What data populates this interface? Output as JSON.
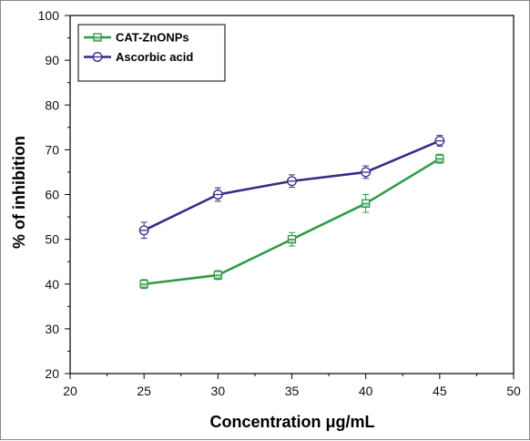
{
  "chart_data": {
    "type": "line",
    "xlabel": "Concentration μg/mL",
    "ylabel": "% of inhibition",
    "xlim": [
      20,
      50
    ],
    "ylim": [
      20,
      100
    ],
    "x_ticks": [
      20,
      25,
      30,
      35,
      40,
      45,
      50
    ],
    "y_ticks": [
      20,
      30,
      40,
      50,
      60,
      70,
      80,
      90,
      100
    ],
    "grid": false,
    "legend": "top-left",
    "x": [
      25,
      30,
      35,
      40,
      45
    ],
    "series": [
      {
        "name": "CAT-ZnONPs",
        "values": [
          40,
          42,
          50,
          58,
          68
        ],
        "errors": [
          1,
          1,
          1.5,
          2,
          1
        ],
        "color": "#2e9b45",
        "marker": "square"
      },
      {
        "name": "Ascorbic acid",
        "values": [
          52,
          60,
          63,
          65,
          72
        ],
        "errors": [
          1.8,
          1.5,
          1.4,
          1.4,
          1.2
        ],
        "color": "#3c2a86",
        "marker": "circle"
      }
    ]
  }
}
